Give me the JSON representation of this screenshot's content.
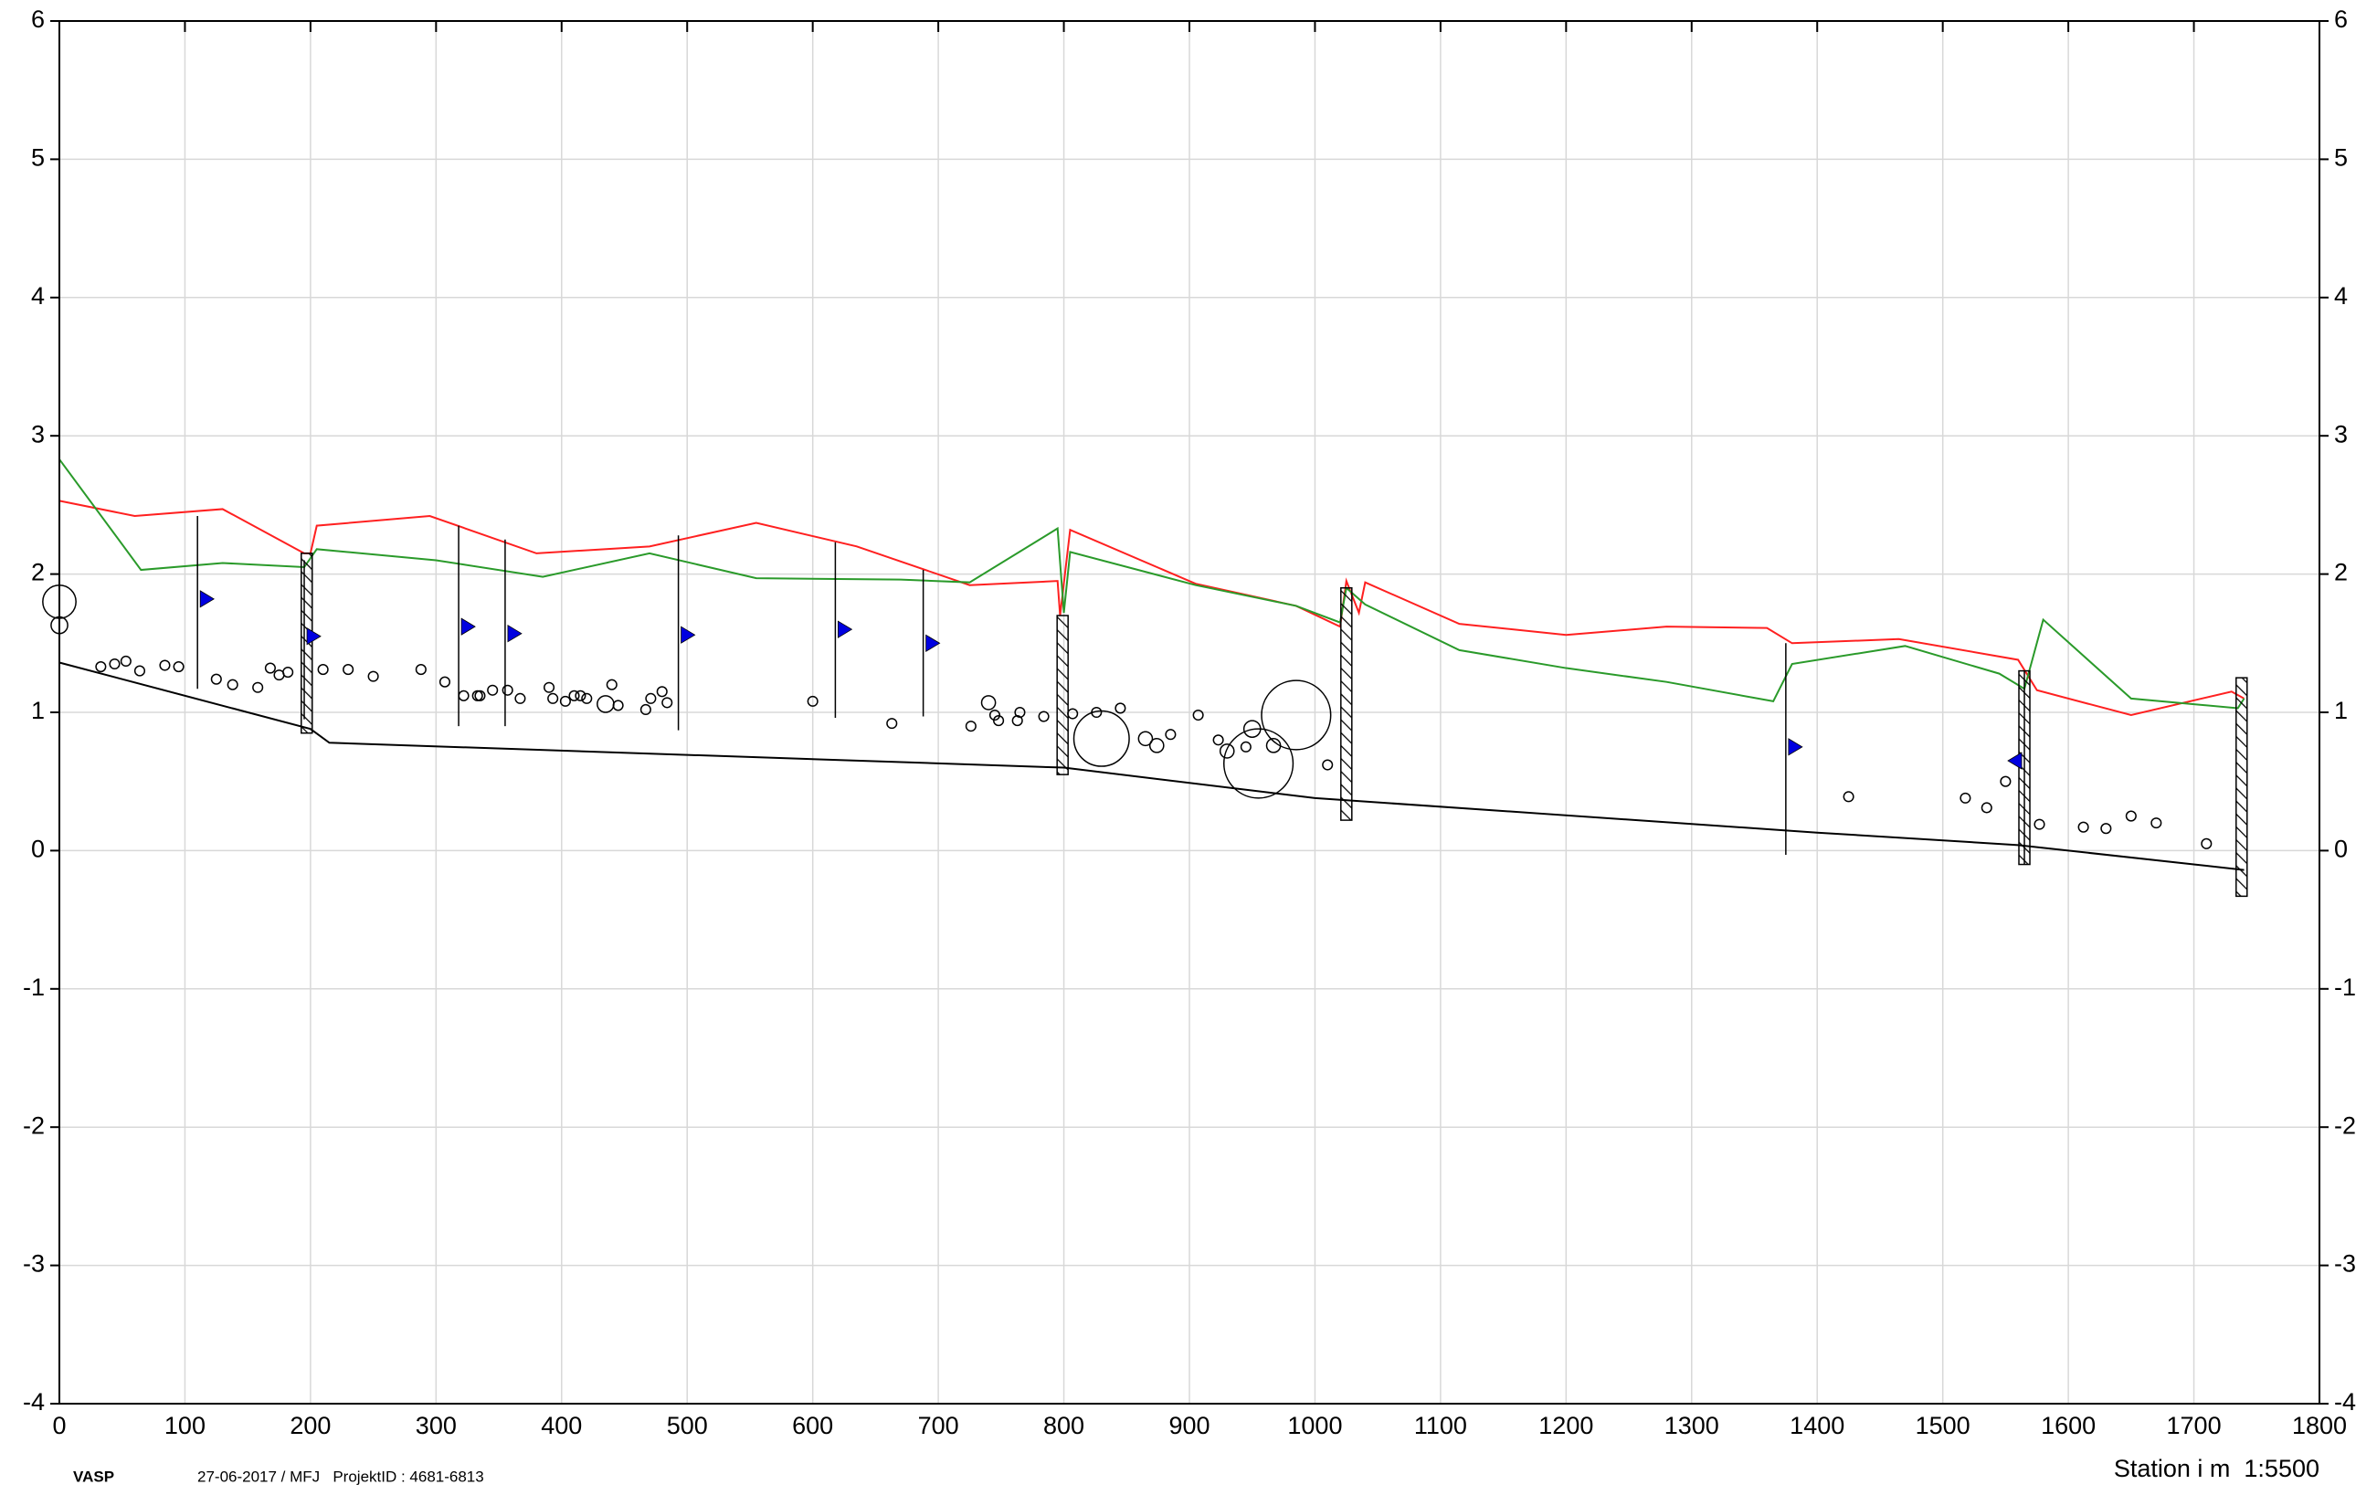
{
  "chart_data": {
    "type": "profile",
    "xlabel": "Station i m  1:5500",
    "footer_left": "VASP",
    "footer_info": "27-06-2017 / MFJ   ProjektID : 4681-6813",
    "xlim": [
      0,
      1800
    ],
    "xticks": [
      0,
      100,
      200,
      300,
      400,
      500,
      600,
      700,
      800,
      900,
      1000,
      1100,
      1200,
      1300,
      1400,
      1500,
      1600,
      1700,
      1800
    ],
    "ylim": [
      -4,
      6
    ],
    "yticks": [
      -4,
      -3,
      -2,
      -1,
      0,
      1,
      2,
      3,
      4,
      5,
      6
    ],
    "grid": true,
    "series": [
      {
        "color": "#ff2020",
        "x": [
          0,
          60,
          130,
          195,
          200,
          205,
          295,
          380,
          470,
          555,
          635,
          725,
          795,
          797,
          805,
          905,
          985,
          1020,
          1025,
          1035,
          1040,
          1115,
          1200,
          1280,
          1360,
          1380,
          1465,
          1560,
          1575,
          1650,
          1730,
          1740
        ],
        "values": [
          2.53,
          2.42,
          2.47,
          2.15,
          2.15,
          2.35,
          2.42,
          2.15,
          2.2,
          2.37,
          2.2,
          1.92,
          1.95,
          1.7,
          2.32,
          1.93,
          1.77,
          1.62,
          1.95,
          1.72,
          1.94,
          1.64,
          1.56,
          1.62,
          1.61,
          1.5,
          1.53,
          1.38,
          1.16,
          0.98,
          1.15,
          1.1
        ]
      },
      {
        "color": "#2a9a2a",
        "x": [
          0,
          65,
          130,
          195,
          205,
          300,
          385,
          470,
          555,
          670,
          725,
          795,
          800,
          805,
          905,
          985,
          1020,
          1025,
          1040,
          1115,
          1200,
          1280,
          1365,
          1380,
          1470,
          1545,
          1565,
          1580,
          1650,
          1735,
          1740
        ],
        "values": [
          2.83,
          2.03,
          2.08,
          2.05,
          2.18,
          2.1,
          1.98,
          2.15,
          1.97,
          1.96,
          1.94,
          2.33,
          1.72,
          2.16,
          1.92,
          1.77,
          1.65,
          1.9,
          1.78,
          1.45,
          1.32,
          1.22,
          1.08,
          1.35,
          1.48,
          1.28,
          1.17,
          1.67,
          1.1,
          1.03,
          1.1
        ]
      },
      {
        "color": "#000000",
        "x": [
          0,
          200,
          215,
          800,
          1000,
          1400,
          1560,
          1740
        ],
        "values": [
          1.36,
          0.88,
          0.78,
          0.6,
          0.38,
          0.13,
          0.04,
          -0.14
        ]
      }
    ],
    "points": {
      "x": [
        0,
        0,
        435,
        740,
        950,
        830,
        955,
        985,
        33,
        44,
        53,
        64,
        84,
        95,
        125,
        138,
        158,
        168,
        175,
        182,
        210,
        230,
        250,
        288,
        307,
        322,
        333,
        335,
        345,
        357,
        367,
        390,
        393,
        403,
        410,
        415,
        420,
        440,
        445,
        467,
        471,
        480,
        484,
        600,
        663,
        726,
        745,
        748,
        763,
        765,
        784,
        807,
        826,
        845,
        865,
        874,
        885,
        907,
        923,
        930,
        945,
        967,
        1010,
        1425,
        1518,
        1535,
        1550,
        1577,
        1612,
        1630,
        1650,
        1670,
        1710
      ],
      "y": [
        1.8,
        1.63,
        1.06,
        1.07,
        0.88,
        0.81,
        0.63,
        0.98,
        1.33,
        1.35,
        1.37,
        1.3,
        1.34,
        1.33,
        1.24,
        1.2,
        1.18,
        1.32,
        1.27,
        1.29,
        1.31,
        1.31,
        1.26,
        1.31,
        1.22,
        1.12,
        1.12,
        1.12,
        1.16,
        1.16,
        1.1,
        1.18,
        1.1,
        1.08,
        1.12,
        1.12,
        1.1,
        1.2,
        1.05,
        1.02,
        1.1,
        1.15,
        1.07,
        1.08,
        0.92,
        0.9,
        0.98,
        0.94,
        0.94,
        1.0,
        0.97,
        0.99,
        1.0,
        1.03,
        0.81,
        0.76,
        0.84,
        0.98,
        0.8,
        0.72,
        0.75,
        0.76,
        0.62,
        0.39,
        0.38,
        0.31,
        0.5,
        0.19,
        0.17,
        0.16,
        0.25,
        0.2,
        0.05
      ],
      "size": [
        0.12,
        0.06,
        0.06,
        0.05,
        0.06,
        0.2,
        0.25,
        0.25,
        0.035,
        0.035,
        0.035,
        0.035,
        0.035,
        0.035,
        0.035,
        0.035,
        0.035,
        0.035,
        0.035,
        0.035,
        0.035,
        0.035,
        0.035,
        0.035,
        0.035,
        0.035,
        0.035,
        0.035,
        0.035,
        0.035,
        0.035,
        0.035,
        0.035,
        0.035,
        0.035,
        0.035,
        0.035,
        0.035,
        0.035,
        0.035,
        0.035,
        0.035,
        0.035,
        0.035,
        0.035,
        0.035,
        0.035,
        0.035,
        0.035,
        0.035,
        0.035,
        0.035,
        0.035,
        0.035,
        0.05,
        0.05,
        0.035,
        0.035,
        0.035,
        0.05,
        0.035,
        0.05,
        0.035,
        0.035,
        0.035,
        0.035,
        0.035,
        0.035,
        0.035,
        0.035,
        0.035,
        0.035,
        0.035
      ]
    },
    "manholes": [
      {
        "x": 197,
        "top": 2.15,
        "bottom": 0.85
      },
      {
        "x": 799,
        "top": 1.7,
        "bottom": 0.55
      },
      {
        "x": 1025,
        "top": 1.9,
        "bottom": 0.22
      },
      {
        "x": 1565,
        "top": 1.3,
        "bottom": -0.1
      },
      {
        "x": 1738,
        "top": 1.25,
        "bottom": -0.33
      }
    ],
    "stations": [
      {
        "x": 110,
        "top": 2.42,
        "bottom": 1.17,
        "flag": 1.82,
        "direction": "right"
      },
      {
        "x": 195,
        "top": 2.1,
        "bottom": 0.95,
        "flag": 1.55,
        "direction": "right"
      },
      {
        "x": 318,
        "top": 2.35,
        "bottom": 0.9,
        "flag": 1.62,
        "direction": "right"
      },
      {
        "x": 355,
        "top": 2.25,
        "bottom": 0.9,
        "flag": 1.57,
        "direction": "right"
      },
      {
        "x": 493,
        "top": 2.28,
        "bottom": 0.87,
        "flag": 1.56,
        "direction": "right"
      },
      {
        "x": 618,
        "top": 2.23,
        "bottom": 0.96,
        "flag": 1.6,
        "direction": "right"
      },
      {
        "x": 688,
        "top": 2.03,
        "bottom": 0.97,
        "flag": 1.5,
        "direction": "right"
      },
      {
        "x": 1375,
        "top": 1.5,
        "bottom": -0.03,
        "flag": 0.75,
        "direction": "right"
      },
      {
        "x": 1565,
        "top": 1.3,
        "bottom": -0.1,
        "flag": 0.65,
        "direction": "left"
      }
    ]
  }
}
